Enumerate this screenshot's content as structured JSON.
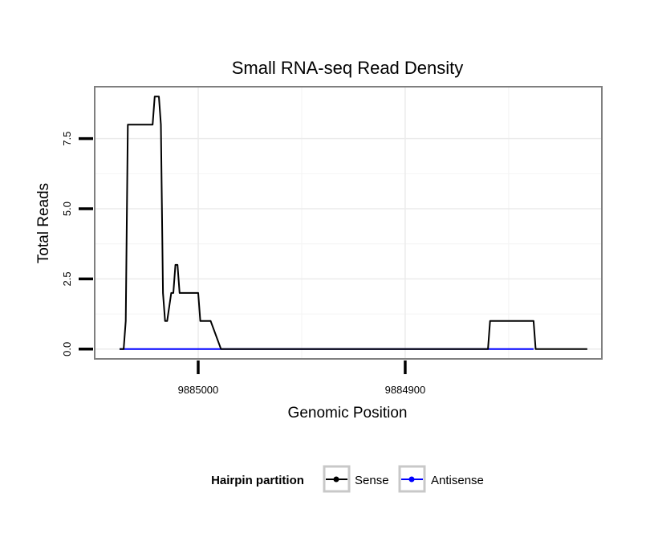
{
  "chart_data": {
    "type": "line",
    "title": "Small RNA-seq Read Density",
    "xlabel": "Genomic Position",
    "ylabel": "Total Reads",
    "xlim": [
      9885050,
      9884805
    ],
    "ylim": [
      -0.35,
      9.35
    ],
    "x_reversed": true,
    "grid": true,
    "x_ticks": [
      {
        "value": 9885000,
        "label": "9885000"
      },
      {
        "value": 9884900,
        "label": "9884900"
      }
    ],
    "y_ticks": [
      {
        "value": 0,
        "label": "0.0"
      },
      {
        "value": 2.5,
        "label": "2.5"
      },
      {
        "value": 5,
        "label": "5.0"
      },
      {
        "value": 7.5,
        "label": "7.5"
      }
    ],
    "legend": {
      "title": "Hairpin partition",
      "position": "bottom",
      "entries": [
        {
          "name": "Sense",
          "color": "#000000"
        },
        {
          "name": "Antisense",
          "color": "#0000ff"
        }
      ]
    },
    "series": [
      {
        "name": "Sense",
        "color": "#000000",
        "x": [
          9885038,
          9885036,
          9885035,
          9885034,
          9885022,
          9885021,
          9885019,
          9885018,
          9885017,
          9885016,
          9885015,
          9885013,
          9885012,
          9885011,
          9885010,
          9885009,
          9885008,
          9885006,
          9885005,
          9885000,
          9884999,
          9884995,
          9884994,
          9884989,
          9884860,
          9884859,
          9884838,
          9884837,
          9884812
        ],
        "y": [
          0,
          0,
          1,
          8,
          8,
          9,
          9,
          8,
          2,
          1,
          1,
          2,
          2,
          3,
          3,
          2,
          2,
          2,
          2,
          2,
          1,
          1,
          1,
          0,
          0,
          1,
          1,
          0,
          0
        ]
      },
      {
        "name": "Antisense",
        "color": "#0000ff",
        "x": [
          9885038,
          9884989,
          9884860,
          9884838
        ],
        "y": [
          0,
          0,
          0,
          0
        ]
      }
    ]
  }
}
